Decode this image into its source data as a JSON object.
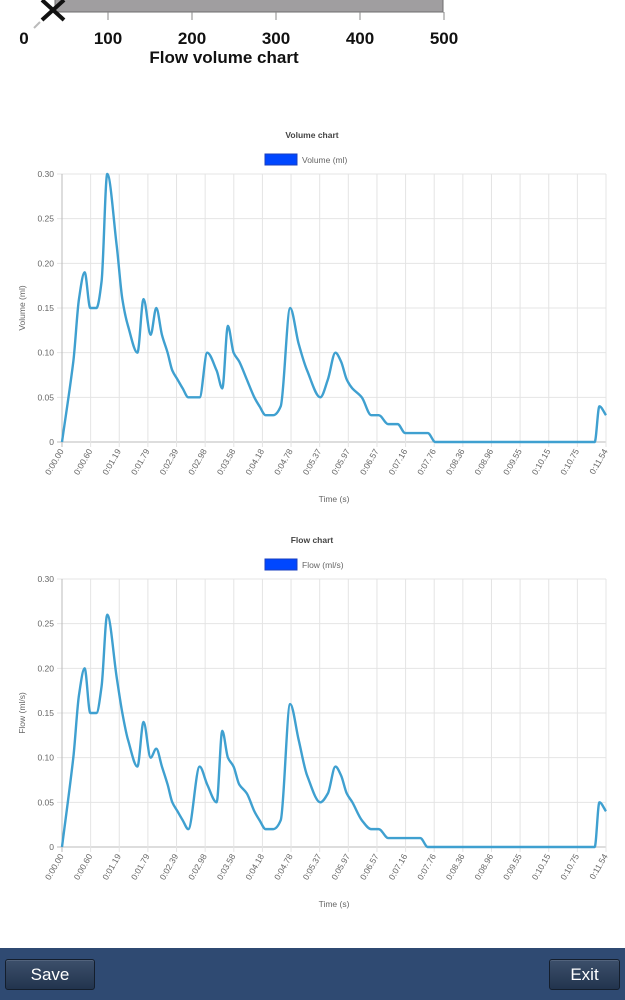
{
  "top_chart": {
    "title": "Flow volume chart",
    "ticks": [
      0,
      100,
      200,
      300,
      400,
      500
    ],
    "xlim": [
      0,
      500
    ],
    "bar_color": "#a09ea0"
  },
  "chart_data": [
    {
      "type": "line",
      "title": "Volume chart",
      "xlabel": "Time (s)",
      "ylabel": "Volume (ml)",
      "ylim": [
        0,
        0.3
      ],
      "yticks": [
        "0",
        "0.05",
        "0.10",
        "0.15",
        "0.20",
        "0.25",
        "0.30"
      ],
      "xticks": [
        "0:00.00",
        "0:00.60",
        "0:01.19",
        "0:01.79",
        "0:02.39",
        "0:02.98",
        "0:03.58",
        "0:04.18",
        "0:04.78",
        "0:05.37",
        "0:05.97",
        "0:06.57",
        "0:07.16",
        "0:07.76",
        "0:08.36",
        "0:08.96",
        "0:09.55",
        "0:10.15",
        "0:10.75",
        "0:11.54"
      ],
      "grid": true,
      "legend": "top-center",
      "series": [
        {
          "name": "Volume (ml)",
          "line_color": "#3fa0d0",
          "legend_color": "#0047ff",
          "x": [
            0,
            0.24,
            0.36,
            0.48,
            0.6,
            0.73,
            0.84,
            0.96,
            1.16,
            1.28,
            1.4,
            1.6,
            1.73,
            1.88,
            2.0,
            2.12,
            2.24,
            2.34,
            2.45,
            2.56,
            2.68,
            2.92,
            3.08,
            3.28,
            3.4,
            3.52,
            3.64,
            3.76,
            3.92,
            4.08,
            4.19,
            4.32,
            4.48,
            4.64,
            4.84,
            5.02,
            5.2,
            5.48,
            5.64,
            5.8,
            5.92,
            6.04,
            6.16,
            6.36,
            6.56,
            6.72,
            6.92,
            7.12,
            7.28,
            7.44,
            7.6,
            7.76,
            7.92,
            8.08,
            8.2,
            8.36,
            8.56,
            8.8,
            9.0,
            9.12,
            9.24,
            9.5,
            10.0,
            10.5,
            11.0,
            11.3,
            11.4,
            11.54
          ],
          "values": [
            0,
            0.09,
            0.16,
            0.19,
            0.15,
            0.15,
            0.18,
            0.3,
            0.22,
            0.16,
            0.13,
            0.1,
            0.16,
            0.12,
            0.15,
            0.12,
            0.1,
            0.08,
            0.07,
            0.06,
            0.05,
            0.05,
            0.1,
            0.08,
            0.06,
            0.13,
            0.1,
            0.09,
            0.07,
            0.05,
            0.04,
            0.03,
            0.03,
            0.04,
            0.15,
            0.11,
            0.08,
            0.05,
            0.07,
            0.1,
            0.09,
            0.07,
            0.06,
            0.05,
            0.03,
            0.03,
            0.02,
            0.02,
            0.01,
            0.01,
            0.01,
            0.01,
            0.0,
            0.0,
            0.0,
            0.0,
            0.0,
            0.0,
            0.0,
            0.0,
            0.0,
            0.0,
            0.0,
            0.0,
            0.0,
            0.0,
            0.04,
            0.03
          ]
        }
      ]
    },
    {
      "type": "line",
      "title": "Flow chart",
      "xlabel": "Time (s)",
      "ylabel": "Flow (ml/s)",
      "ylim": [
        0,
        0.3
      ],
      "yticks": [
        "0",
        "0.05",
        "0.10",
        "0.15",
        "0.20",
        "0.25",
        "0.30"
      ],
      "xticks": [
        "0:00.00",
        "0:00.60",
        "0:01.19",
        "0:01.79",
        "0:02.39",
        "0:02.98",
        "0:03.58",
        "0:04.18",
        "0:04.78",
        "0:05.37",
        "0:05.97",
        "0:06.57",
        "0:07.16",
        "0:07.76",
        "0:08.36",
        "0:08.96",
        "0:09.55",
        "0:10.15",
        "0:10.75",
        "0:11.54"
      ],
      "grid": true,
      "legend": "top-center",
      "series": [
        {
          "name": "Flow (ml/s)",
          "line_color": "#3fa0d0",
          "legend_color": "#0047ff",
          "x": [
            0,
            0.24,
            0.36,
            0.48,
            0.6,
            0.73,
            0.84,
            0.96,
            1.16,
            1.28,
            1.4,
            1.6,
            1.73,
            1.88,
            2.0,
            2.12,
            2.24,
            2.34,
            2.45,
            2.56,
            2.68,
            2.92,
            3.08,
            3.28,
            3.4,
            3.52,
            3.64,
            3.76,
            3.92,
            4.08,
            4.19,
            4.32,
            4.48,
            4.64,
            4.84,
            5.02,
            5.2,
            5.48,
            5.64,
            5.8,
            5.92,
            6.04,
            6.16,
            6.36,
            6.56,
            6.72,
            6.92,
            7.12,
            7.28,
            7.44,
            7.6,
            7.76,
            7.92,
            8.08,
            8.2,
            8.36,
            8.56,
            8.8,
            9.0,
            9.12,
            9.24,
            9.5,
            10.0,
            10.5,
            11.0,
            11.3,
            11.4,
            11.54
          ],
          "values": [
            0,
            0.1,
            0.17,
            0.2,
            0.15,
            0.15,
            0.18,
            0.26,
            0.19,
            0.15,
            0.12,
            0.09,
            0.14,
            0.1,
            0.11,
            0.09,
            0.07,
            0.05,
            0.04,
            0.03,
            0.02,
            0.09,
            0.07,
            0.05,
            0.13,
            0.1,
            0.09,
            0.07,
            0.06,
            0.04,
            0.03,
            0.02,
            0.02,
            0.03,
            0.16,
            0.12,
            0.08,
            0.05,
            0.06,
            0.09,
            0.08,
            0.06,
            0.05,
            0.03,
            0.02,
            0.02,
            0.01,
            0.01,
            0.01,
            0.01,
            0.01,
            0.0,
            0.0,
            0.0,
            0.0,
            0.0,
            0.0,
            0.0,
            0.0,
            0.0,
            0.0,
            0.0,
            0.0,
            0.0,
            0.0,
            0.0,
            0.05,
            0.04
          ]
        }
      ]
    }
  ],
  "toolbar": {
    "save_label": "Save",
    "exit_label": "Exit"
  }
}
